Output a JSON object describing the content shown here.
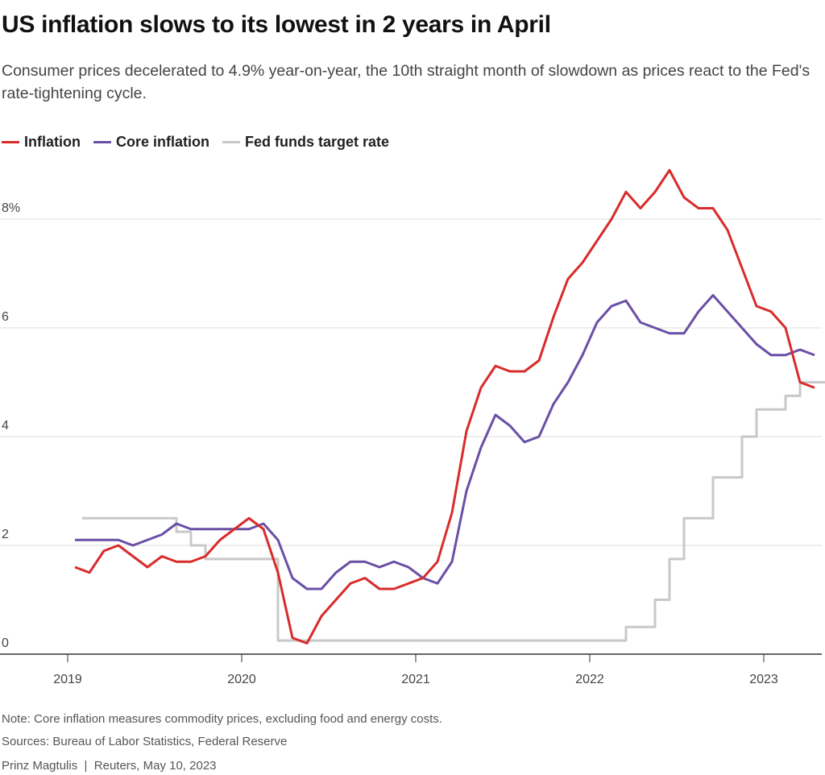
{
  "title": "US inflation slows to its lowest in 2 years in April",
  "subtitle": "Consumer prices decelerated to 4.9% year-on-year, the 10th straight month of slowdown as prices react to the Fed's rate-tightening cycle.",
  "footer": {
    "note": "Note: Core inflation measures commodity prices, excluding food and energy costs.",
    "sources": "Sources: Bureau of Labor Statistics, Federal Reserve",
    "credit": "Prinz Magtulis  |  Reuters, May 10, 2023"
  },
  "chart_data": {
    "type": "line",
    "title": "US inflation slows to its lowest in 2 years in April",
    "xlabel": "",
    "ylabel": "",
    "ylim": [
      0,
      9
    ],
    "xlim": [
      "2019-01",
      "2023-05"
    ],
    "grid": true,
    "legend_placement": "top-left",
    "y_ticks": [
      {
        "value": 0,
        "label": "0"
      },
      {
        "value": 2,
        "label": "2"
      },
      {
        "value": 4,
        "label": "4"
      },
      {
        "value": 6,
        "label": "6"
      },
      {
        "value": 8,
        "label": "8%"
      }
    ],
    "x_ticks": [
      "2019",
      "2020",
      "2021",
      "2022",
      "2023"
    ],
    "x": [
      "2019-01",
      "2019-02",
      "2019-03",
      "2019-04",
      "2019-05",
      "2019-06",
      "2019-07",
      "2019-08",
      "2019-09",
      "2019-10",
      "2019-11",
      "2019-12",
      "2020-01",
      "2020-02",
      "2020-03",
      "2020-04",
      "2020-05",
      "2020-06",
      "2020-07",
      "2020-08",
      "2020-09",
      "2020-10",
      "2020-11",
      "2020-12",
      "2021-01",
      "2021-02",
      "2021-03",
      "2021-04",
      "2021-05",
      "2021-06",
      "2021-07",
      "2021-08",
      "2021-09",
      "2021-10",
      "2021-11",
      "2021-12",
      "2022-01",
      "2022-02",
      "2022-03",
      "2022-04",
      "2022-05",
      "2022-06",
      "2022-07",
      "2022-08",
      "2022-09",
      "2022-10",
      "2022-11",
      "2022-12",
      "2023-01",
      "2023-02",
      "2023-03",
      "2023-04"
    ],
    "series": [
      {
        "name": "Inflation",
        "color": "#d92b2b",
        "style": "line",
        "values": [
          1.6,
          1.5,
          1.9,
          2.0,
          1.8,
          1.6,
          1.8,
          1.7,
          1.7,
          1.8,
          2.1,
          2.3,
          2.5,
          2.3,
          1.5,
          0.3,
          0.2,
          0.7,
          1.0,
          1.3,
          1.4,
          1.2,
          1.2,
          1.3,
          1.4,
          1.7,
          2.6,
          4.1,
          4.9,
          5.3,
          5.2,
          5.2,
          5.4,
          6.2,
          6.9,
          7.2,
          7.6,
          8.0,
          8.5,
          8.2,
          8.5,
          8.9,
          8.4,
          8.2,
          8.2,
          7.8,
          7.1,
          6.4,
          6.3,
          6.0,
          5.0,
          4.9
        ]
      },
      {
        "name": "Core inflation",
        "color": "#6a4fa6",
        "style": "line",
        "values": [
          2.1,
          2.1,
          2.1,
          2.1,
          2.0,
          2.1,
          2.2,
          2.4,
          2.3,
          2.3,
          2.3,
          2.3,
          2.3,
          2.4,
          2.1,
          1.4,
          1.2,
          1.2,
          1.5,
          1.7,
          1.7,
          1.6,
          1.7,
          1.6,
          1.4,
          1.3,
          1.7,
          3.0,
          3.8,
          4.4,
          4.2,
          3.9,
          4.0,
          4.6,
          5.0,
          5.5,
          6.1,
          6.4,
          6.5,
          6.1,
          6.0,
          5.9,
          5.9,
          6.3,
          6.6,
          6.3,
          6.0,
          5.7,
          5.5,
          5.5,
          5.6,
          5.5
        ]
      },
      {
        "name": "Fed funds target rate",
        "color": "#c8c8c8",
        "style": "step",
        "values": [
          2.5,
          2.5,
          2.5,
          2.5,
          2.5,
          2.5,
          2.5,
          2.25,
          2.0,
          1.75,
          1.75,
          1.75,
          1.75,
          1.75,
          0.25,
          0.25,
          0.25,
          0.25,
          0.25,
          0.25,
          0.25,
          0.25,
          0.25,
          0.25,
          0.25,
          0.25,
          0.25,
          0.25,
          0.25,
          0.25,
          0.25,
          0.25,
          0.25,
          0.25,
          0.25,
          0.25,
          0.25,
          0.25,
          0.5,
          0.5,
          1.0,
          1.75,
          2.5,
          2.5,
          3.25,
          3.25,
          4.0,
          4.5,
          4.5,
          4.75,
          5.0,
          5.0
        ]
      }
    ]
  }
}
